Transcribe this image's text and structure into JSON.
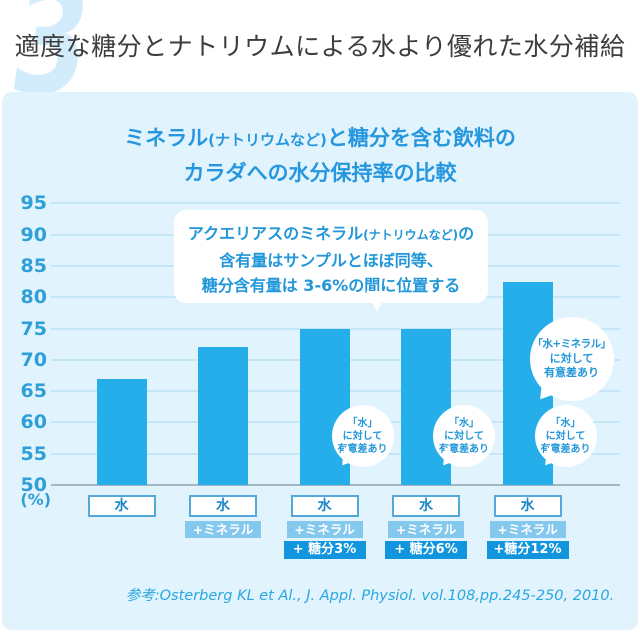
{
  "page": {
    "watermark_number": "3",
    "header_title": "適度な糖分とナトリウムによる水より優れた水分補給"
  },
  "panel": {
    "title": {
      "line1_main": "ミネラル",
      "line1_paren": "(ナトリウムなど)",
      "line1_rest": "と糖分を含む飲料の",
      "line2": "カラダへの水分保持率の比較"
    },
    "callout": {
      "line1_main": "アクエリアスのミネラル",
      "line1_paren": "(ナトリウムなど)",
      "line1_rest": "の",
      "line2": "含有量はサンプルとほぼ同等、",
      "line3": "糖分含有量は 3-6%の間に位置する"
    },
    "reference": "参考:Osterberg KL et Al., J. Appl. Physiol. vol.108,pp.245-250, 2010."
  },
  "chart_data": {
    "type": "bar",
    "title": "ミネラル(ナトリウムなど)と糖分を含む飲料の カラダへの水分保持率の比較",
    "unit": "(%)",
    "ylim": [
      50,
      95
    ],
    "ytick_interval": 5,
    "grid": true,
    "categories": [
      "水",
      "水+ミネラル",
      "水+ミネラル+糖分3%",
      "水+ミネラル+糖分6%",
      "水+ミネラル+糖分12%"
    ],
    "category_label_rows": [
      [
        "水",
        null,
        null
      ],
      [
        "水",
        "+ミネラル",
        null
      ],
      [
        "水",
        "+ミネラル",
        "+ 糖分3%"
      ],
      [
        "水",
        "+ミネラル",
        "+ 糖分6%"
      ],
      [
        "水",
        "+ミネラル",
        "+糖分12%"
      ]
    ],
    "values": [
      67,
      72,
      75,
      75,
      82.5
    ],
    "bar_color": "#25aee9",
    "annotations": [
      {
        "bar_index": 2,
        "placement": "low",
        "lines": [
          "「水」",
          "に対して",
          "有意差あり"
        ]
      },
      {
        "bar_index": 3,
        "placement": "low",
        "lines": [
          "「水」",
          "に対して",
          "有意差あり"
        ]
      },
      {
        "bar_index": 4,
        "placement": "high",
        "lines": [
          "「水+ミネラル」",
          "に対して",
          "有意差あり"
        ]
      },
      {
        "bar_index": 4,
        "placement": "low",
        "lines": [
          "「水」",
          "に対して",
          "有意差あり"
        ]
      }
    ]
  },
  "colors": {
    "accent_blue": "#2697de",
    "bar_blue": "#25aee9",
    "mineral_label_bg": "#84c8ed",
    "sugar_label_bg": "#1195dc",
    "panel_bg": "#e1f3fc"
  }
}
